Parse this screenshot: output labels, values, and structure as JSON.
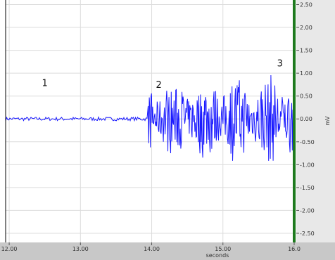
{
  "chart_data": {
    "type": "line",
    "title": "",
    "xlabel": "seconds",
    "ylabel": "mV",
    "xlim": [
      11.95,
      16.0
    ],
    "ylim": [
      -2.7,
      2.6
    ],
    "x_ticks": [
      12.0,
      13.0,
      14.0,
      15.0,
      16.0
    ],
    "x_tick_labels": [
      "12.00",
      "13.00",
      "14.00",
      "15.00",
      "16.0"
    ],
    "y_ticks": [
      2.5,
      2.0,
      1.5,
      1.0,
      0.5,
      0.0,
      -0.5,
      -1.0,
      -1.5,
      -2.0,
      -2.5
    ],
    "y_tick_labels": [
      "2.50",
      "2.00",
      "1.50",
      "1.00",
      "0.50",
      "0.00",
      "-0.50",
      "-1.00",
      "-1.50",
      "-2.00",
      "-2.50"
    ],
    "grid": true,
    "series_color": "#1a1aff",
    "cursor_color": "#1e7a1e",
    "cursor_x": 16.0,
    "series": [
      {
        "segments": [
          {
            "x_start": 11.95,
            "x_end": 13.95,
            "amplitude_mV": 0.04
          },
          {
            "x_start": 13.95,
            "x_end": 16.0,
            "amplitude_mV": 0.9
          }
        ]
      }
    ],
    "annotations": [
      {
        "text": "1",
        "x": 12.5,
        "y": 0.72
      },
      {
        "text": "2",
        "x": 14.1,
        "y": 0.68
      },
      {
        "text": "3",
        "x": 15.8,
        "y": 1.15
      }
    ]
  }
}
